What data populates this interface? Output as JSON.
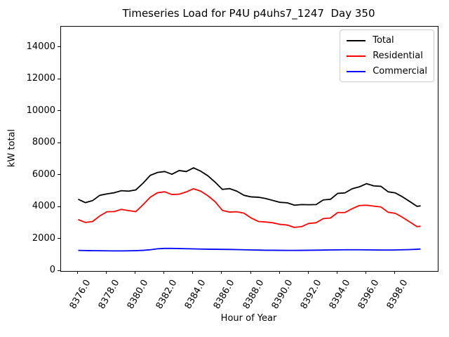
{
  "title": "Timeseries Load for P4U p4uhs7_1247  Day 350",
  "chart_data": {
    "type": "line",
    "title": "Timeseries Load for P4U p4uhs7_1247  Day 350",
    "xlabel": "Hour of Year",
    "ylabel": "kW total",
    "xlim": [
      8374.81,
      8400.94
    ],
    "ylim": [
      0,
      15300
    ],
    "grid": false,
    "legend_position": "upper right",
    "xticks": [
      8376,
      8378,
      8380,
      8382,
      8384,
      8386,
      8388,
      8390,
      8392,
      8394,
      8396,
      8398
    ],
    "xtick_labels": [
      "8376.0",
      "8378.0",
      "8380.0",
      "8382.0",
      "8384.0",
      "8386.0",
      "8388.0",
      "8390.0",
      "8392.0",
      "8394.0",
      "8396.0",
      "8398.0"
    ],
    "yticks": [
      0,
      2000,
      4000,
      6000,
      8000,
      10000,
      12000,
      14000
    ],
    "ytick_labels": [
      "0",
      "2000",
      "4000",
      "6000",
      "8000",
      "10000",
      "12000",
      "14000"
    ],
    "x": [
      8376.0,
      8376.5,
      8377.0,
      8377.5,
      8378.0,
      8378.5,
      8379.0,
      8379.5,
      8380.0,
      8380.5,
      8381.0,
      8381.5,
      8382.0,
      8382.5,
      8383.0,
      8383.5,
      8384.0,
      8384.5,
      8385.0,
      8385.5,
      8386.0,
      8386.5,
      8387.0,
      8387.5,
      8388.0,
      8388.5,
      8389.0,
      8389.5,
      8390.0,
      8390.5,
      8391.0,
      8391.5,
      8392.0,
      8392.5,
      8393.0,
      8393.5,
      8394.0,
      8394.5,
      8395.0,
      8395.5,
      8396.0,
      8396.5,
      8397.0,
      8397.5,
      8398.0,
      8398.5,
      8399.0,
      8399.5,
      8399.75
    ],
    "series": [
      {
        "name": "Total",
        "color": "#000000",
        "values": [
          4490,
          4280,
          4410,
          4740,
          4830,
          4900,
          5030,
          5000,
          5080,
          5500,
          5990,
          6170,
          6230,
          6060,
          6290,
          6230,
          6460,
          6250,
          5960,
          5560,
          5110,
          5160,
          5000,
          4740,
          4640,
          4620,
          4540,
          4420,
          4300,
          4270,
          4120,
          4160,
          4150,
          4160,
          4450,
          4490,
          4860,
          4890,
          5150,
          5270,
          5470,
          5330,
          5300,
          4960,
          4890,
          4640,
          4350,
          4050,
          4080
        ]
      },
      {
        "name": "Residential",
        "color": "#ff0000",
        "values": [
          3220,
          3040,
          3100,
          3450,
          3710,
          3720,
          3860,
          3780,
          3720,
          4150,
          4620,
          4900,
          4960,
          4790,
          4810,
          4950,
          5150,
          5000,
          4710,
          4340,
          3800,
          3690,
          3710,
          3620,
          3320,
          3100,
          3070,
          3020,
          2920,
          2880,
          2730,
          2780,
          2980,
          3020,
          3280,
          3320,
          3660,
          3660,
          3900,
          4100,
          4120,
          4060,
          4010,
          3680,
          3610,
          3360,
          3070,
          2780,
          2800
        ]
      },
      {
        "name": "Commercial",
        "color": "#0000ff",
        "values": [
          1290,
          1280,
          1275,
          1270,
          1265,
          1260,
          1260,
          1265,
          1275,
          1295,
          1330,
          1390,
          1415,
          1415,
          1405,
          1395,
          1385,
          1375,
          1365,
          1360,
          1355,
          1350,
          1340,
          1330,
          1320,
          1310,
          1300,
          1300,
          1295,
          1290,
          1290,
          1295,
          1300,
          1305,
          1310,
          1320,
          1325,
          1330,
          1330,
          1330,
          1325,
          1320,
          1315,
          1315,
          1320,
          1330,
          1340,
          1360,
          1380
        ]
      }
    ]
  }
}
